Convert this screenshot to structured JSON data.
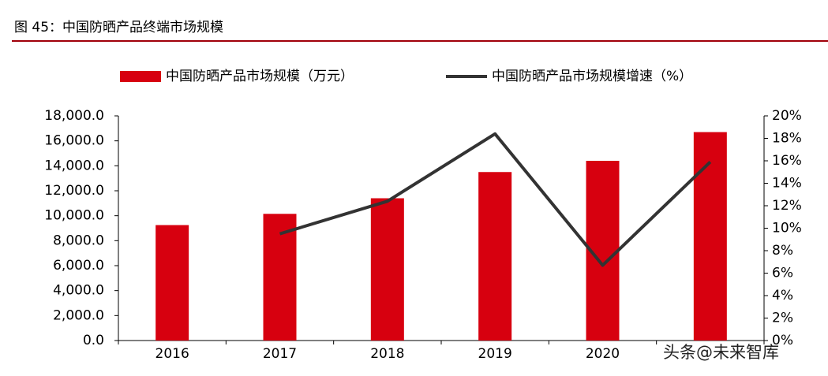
{
  "chart_data": {
    "type": "combo",
    "title": "图 45：中国防晒产品终端市场规模",
    "categories": [
      "2016",
      "2017",
      "2018",
      "2019",
      "2020",
      null
    ],
    "series": [
      {
        "name": "中国防晒产品市场规模（万元）",
        "type": "bar",
        "color": "#d7000f",
        "values": [
          9250,
          10150,
          11400,
          13500,
          14400,
          16700
        ]
      },
      {
        "name": "中国防晒产品市场规模增速（%）",
        "type": "line",
        "axis": "y2",
        "color": "#333333",
        "values": [
          null,
          9.5,
          12.4,
          18.4,
          6.7,
          15.9
        ]
      }
    ],
    "ylim": [
      0,
      18000
    ],
    "yticks": [
      {
        "value": 0,
        "label": "0.0"
      },
      {
        "value": 2000,
        "label": "2,000.0"
      },
      {
        "value": 4000,
        "label": "4,000.0"
      },
      {
        "value": 6000,
        "label": "6,000.0"
      },
      {
        "value": 8000,
        "label": "8,000.0"
      },
      {
        "value": 10000,
        "label": "10,000.0"
      },
      {
        "value": 12000,
        "label": "12,000.0"
      },
      {
        "value": 14000,
        "label": "14,000.0"
      },
      {
        "value": 16000,
        "label": "16,000.0"
      },
      {
        "value": 18000,
        "label": "18,000.0"
      }
    ],
    "y2lim": [
      0,
      20
    ],
    "y2ticks": [
      {
        "value": 0,
        "label": "0%"
      },
      {
        "value": 2,
        "label": "2%"
      },
      {
        "value": 4,
        "label": "4%"
      },
      {
        "value": 6,
        "label": "6%"
      },
      {
        "value": 8,
        "label": "8%"
      },
      {
        "value": 10,
        "label": "10%"
      },
      {
        "value": 12,
        "label": "12%"
      },
      {
        "value": 14,
        "label": "14%"
      },
      {
        "value": 16,
        "label": "16%"
      },
      {
        "value": 18,
        "label": "18%"
      },
      {
        "value": 20,
        "label": "20%"
      }
    ],
    "legend": "top",
    "watermark": "头条@未来智库"
  }
}
